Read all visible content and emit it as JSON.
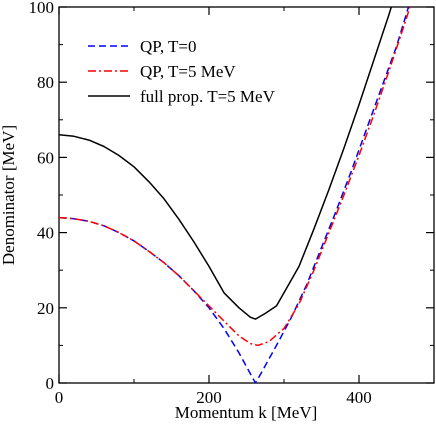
{
  "chart_data": {
    "type": "line",
    "title": "",
    "xlabel": "Momentum k [MeV]",
    "ylabel": "Denominator [MeV]",
    "xlim": [
      0,
      500
    ],
    "ylim": [
      0,
      100
    ],
    "x_ticks": [
      0,
      200,
      400
    ],
    "y_ticks": [
      0,
      20,
      40,
      60,
      80,
      100
    ],
    "grid": false,
    "legend_position": "top-left",
    "series": [
      {
        "name": "QP, T=0",
        "color": "#0000ff",
        "style": "dashed",
        "points": [
          [
            0,
            44
          ],
          [
            20,
            43.7
          ],
          [
            40,
            43
          ],
          [
            60,
            41.8
          ],
          [
            80,
            40
          ],
          [
            100,
            37.8
          ],
          [
            120,
            35
          ],
          [
            140,
            32
          ],
          [
            160,
            28.5
          ],
          [
            180,
            24.5
          ],
          [
            200,
            20
          ],
          [
            220,
            14.5
          ],
          [
            240,
            8
          ],
          [
            255,
            2.5
          ],
          [
            262,
            0
          ],
          [
            270,
            2.8
          ],
          [
            290,
            10
          ],
          [
            310,
            17.5
          ],
          [
            330,
            26
          ],
          [
            350,
            36
          ],
          [
            370,
            46
          ],
          [
            390,
            56.5
          ],
          [
            410,
            67.5
          ],
          [
            430,
            78.5
          ],
          [
            450,
            89.5
          ],
          [
            466,
            100
          ]
        ]
      },
      {
        "name": "QP, T=5 MeV",
        "color": "#ff0000",
        "style": "dashdot",
        "points": [
          [
            0,
            44
          ],
          [
            20,
            43.7
          ],
          [
            40,
            43
          ],
          [
            60,
            41.8
          ],
          [
            80,
            40
          ],
          [
            100,
            37.8
          ],
          [
            120,
            35
          ],
          [
            140,
            32
          ],
          [
            160,
            28.5
          ],
          [
            180,
            24.5
          ],
          [
            200,
            20.5
          ],
          [
            220,
            16.5
          ],
          [
            240,
            12.5
          ],
          [
            255,
            10.5
          ],
          [
            265,
            10
          ],
          [
            280,
            11
          ],
          [
            300,
            14.5
          ],
          [
            320,
            21
          ],
          [
            340,
            30
          ],
          [
            360,
            40
          ],
          [
            380,
            50
          ],
          [
            400,
            60.5
          ],
          [
            420,
            71.5
          ],
          [
            440,
            83
          ],
          [
            460,
            95
          ],
          [
            468,
            100
          ]
        ]
      },
      {
        "name": "full prop. T=5 MeV",
        "color": "#000000",
        "style": "solid",
        "points": [
          [
            0,
            66
          ],
          [
            20,
            65.6
          ],
          [
            40,
            64.6
          ],
          [
            60,
            62.9
          ],
          [
            80,
            60.5
          ],
          [
            100,
            57.5
          ],
          [
            120,
            53.5
          ],
          [
            140,
            49
          ],
          [
            160,
            43.5
          ],
          [
            180,
            37.5
          ],
          [
            200,
            31
          ],
          [
            220,
            24
          ],
          [
            240,
            20
          ],
          [
            255,
            17.5
          ],
          [
            262,
            17
          ],
          [
            275,
            18.5
          ],
          [
            290,
            20.5
          ],
          [
            300,
            24
          ],
          [
            320,
            31
          ],
          [
            340,
            41
          ],
          [
            360,
            51.5
          ],
          [
            380,
            62.5
          ],
          [
            400,
            74
          ],
          [
            420,
            86
          ],
          [
            440,
            98
          ],
          [
            443,
            100
          ]
        ]
      }
    ]
  }
}
